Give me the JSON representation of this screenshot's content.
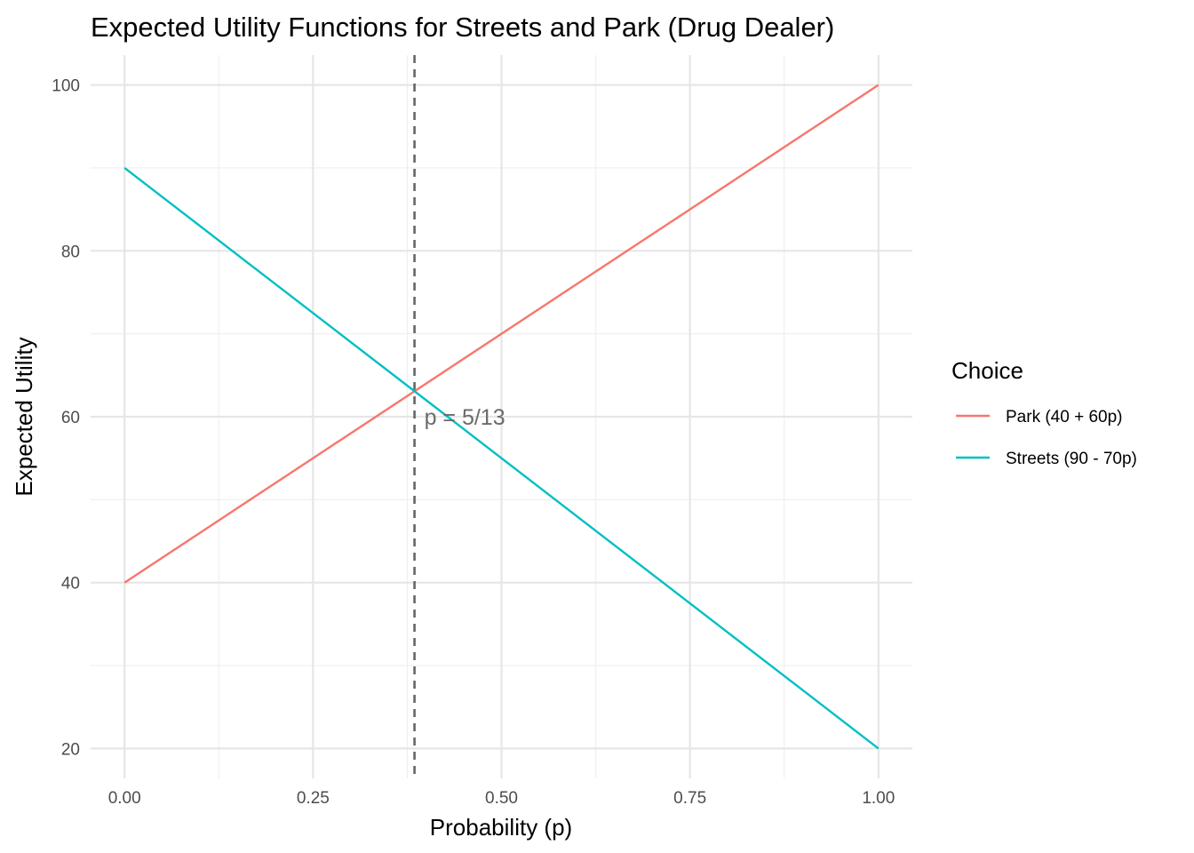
{
  "chart_data": {
    "type": "line",
    "title": "Expected Utility Functions for Streets and Park (Drug Dealer)",
    "xlabel": "Probability (p)",
    "ylabel": "Expected Utility",
    "xlim": [
      -0.045,
      1.045
    ],
    "ylim": [
      16.4,
      103.6
    ],
    "x_ticks": [
      0,
      0.25,
      0.5,
      0.75,
      1
    ],
    "x_tick_labels": [
      "0.00",
      "0.25",
      "0.50",
      "0.75",
      "1.00"
    ],
    "x_minor": [
      0.125,
      0.375,
      0.625,
      0.875
    ],
    "y_ticks": [
      20,
      40,
      60,
      80,
      100
    ],
    "y_tick_labels": [
      "20",
      "40",
      "60",
      "80",
      "100"
    ],
    "y_minor": [
      30,
      50,
      70,
      90
    ],
    "grid": true,
    "legend": {
      "title": "Choice",
      "placement": "right"
    },
    "series": [
      {
        "name": "Park (40 + 60p)",
        "color": "#F8766D",
        "x": [
          0,
          1
        ],
        "y": [
          40,
          100
        ]
      },
      {
        "name": "Streets (90 - 70p)",
        "color": "#00BFC4",
        "x": [
          0,
          1
        ],
        "y": [
          90,
          20
        ]
      }
    ],
    "reference_line": {
      "orientation": "vertical",
      "x": 0.3846,
      "style": "dashed",
      "color": "#666666"
    },
    "annotation": {
      "text": "p = 5/13",
      "x": 0.3846,
      "y": 60
    }
  }
}
